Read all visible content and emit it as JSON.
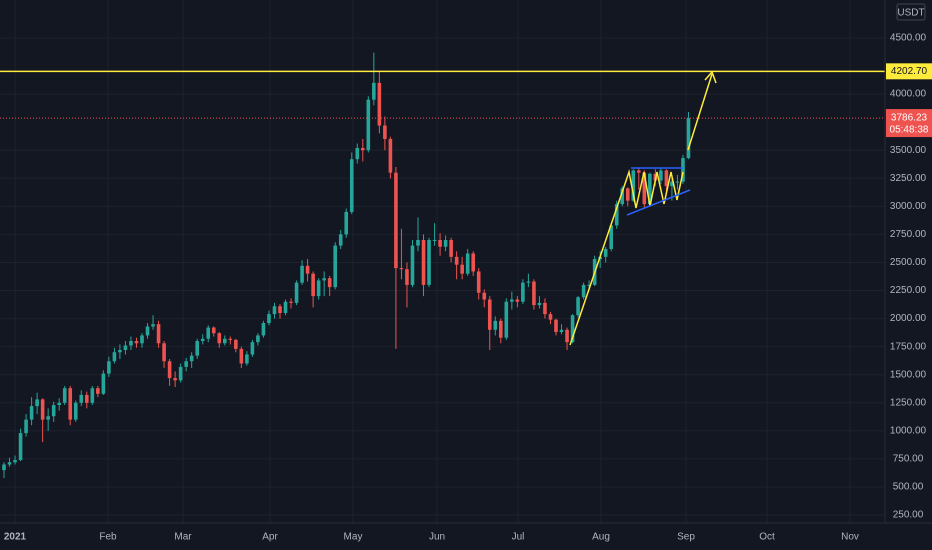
{
  "chart_data": {
    "type": "candlestick",
    "currency": "USDT",
    "up_color": "#26a69a",
    "down_color": "#ef5350",
    "grid": true,
    "ylim": [
      179,
      4838
    ],
    "yticks": [
      {
        "value": 250,
        "label": "250.00"
      },
      {
        "value": 500,
        "label": "500.00"
      },
      {
        "value": 750,
        "label": "750.00"
      },
      {
        "value": 1000,
        "label": "1000.00"
      },
      {
        "value": 1250,
        "label": "1250.00"
      },
      {
        "value": 1500,
        "label": "1500.00"
      },
      {
        "value": 1750,
        "label": "1750.00"
      },
      {
        "value": 2000,
        "label": "2000.00"
      },
      {
        "value": 2250,
        "label": "2250.00"
      },
      {
        "value": 2500,
        "label": "2500.00"
      },
      {
        "value": 2750,
        "label": "2750.00"
      },
      {
        "value": 3000,
        "label": "3000.00"
      },
      {
        "value": 3250,
        "label": "3250.00"
      },
      {
        "value": 3500,
        "label": "3500.00"
      },
      {
        "value": 4000,
        "label": "4000.00"
      },
      {
        "value": 4500,
        "label": "4500.00"
      }
    ],
    "x_labels": [
      "2021",
      "Feb",
      "Mar",
      "Apr",
      "May",
      "Jun",
      "Jul",
      "Aug",
      "Sep",
      "Oct",
      "Nov"
    ],
    "level": {
      "value": 4202.7,
      "label": "4202.70",
      "color": "#ffeb3b"
    },
    "countdown": "05:48:38",
    "ohlc": [
      [
        650,
        720,
        580,
        700
      ],
      [
        700,
        760,
        680,
        720
      ],
      [
        720,
        780,
        700,
        740
      ],
      [
        740,
        1020,
        730,
        980
      ],
      [
        980,
        1150,
        950,
        1100
      ],
      [
        1100,
        1300,
        1050,
        1220
      ],
      [
        1220,
        1340,
        1150,
        1280
      ],
      [
        1280,
        1290,
        900,
        1100
      ],
      [
        1100,
        1200,
        1000,
        1130
      ],
      [
        1130,
        1260,
        1080,
        1230
      ],
      [
        1230,
        1290,
        1180,
        1250
      ],
      [
        1250,
        1400,
        1230,
        1380
      ],
      [
        1380,
        1400,
        1050,
        1100
      ],
      [
        1100,
        1270,
        1080,
        1250
      ],
      [
        1250,
        1360,
        1220,
        1320
      ],
      [
        1320,
        1350,
        1200,
        1250
      ],
      [
        1250,
        1400,
        1230,
        1380
      ],
      [
        1380,
        1400,
        1300,
        1330
      ],
      [
        1330,
        1540,
        1320,
        1510
      ],
      [
        1510,
        1660,
        1480,
        1620
      ],
      [
        1620,
        1740,
        1600,
        1700
      ],
      [
        1700,
        1770,
        1640,
        1720
      ],
      [
        1720,
        1800,
        1680,
        1760
      ],
      [
        1760,
        1840,
        1720,
        1800
      ],
      [
        1800,
        1830,
        1740,
        1780
      ],
      [
        1780,
        1870,
        1740,
        1850
      ],
      [
        1850,
        1960,
        1820,
        1930
      ],
      [
        1930,
        2030,
        1900,
        1950
      ],
      [
        1950,
        1980,
        1740,
        1780
      ],
      [
        1780,
        1800,
        1560,
        1620
      ],
      [
        1620,
        1640,
        1400,
        1470
      ],
      [
        1470,
        1530,
        1390,
        1450
      ],
      [
        1450,
        1600,
        1430,
        1570
      ],
      [
        1570,
        1650,
        1530,
        1620
      ],
      [
        1620,
        1700,
        1560,
        1670
      ],
      [
        1670,
        1820,
        1640,
        1800
      ],
      [
        1800,
        1860,
        1770,
        1820
      ],
      [
        1820,
        1940,
        1790,
        1920
      ],
      [
        1920,
        1930,
        1840,
        1870
      ],
      [
        1870,
        1880,
        1740,
        1780
      ],
      [
        1780,
        1850,
        1760,
        1820
      ],
      [
        1820,
        1840,
        1770,
        1810
      ],
      [
        1810,
        1820,
        1700,
        1730
      ],
      [
        1730,
        1750,
        1560,
        1600
      ],
      [
        1600,
        1710,
        1580,
        1680
      ],
      [
        1680,
        1810,
        1660,
        1790
      ],
      [
        1790,
        1870,
        1760,
        1850
      ],
      [
        1850,
        1980,
        1830,
        1960
      ],
      [
        1960,
        2070,
        1940,
        2040
      ],
      [
        2040,
        2140,
        2000,
        2110
      ],
      [
        2110,
        2130,
        2000,
        2050
      ],
      [
        2050,
        2170,
        2030,
        2150
      ],
      [
        2150,
        2180,
        2090,
        2140
      ],
      [
        2140,
        2340,
        2120,
        2320
      ],
      [
        2320,
        2520,
        2300,
        2470
      ],
      [
        2470,
        2530,
        2330,
        2400
      ],
      [
        2400,
        2420,
        2100,
        2200
      ],
      [
        2200,
        2360,
        2170,
        2340
      ],
      [
        2340,
        2420,
        2200,
        2360
      ],
      [
        2360,
        2380,
        2200,
        2280
      ],
      [
        2280,
        2680,
        2260,
        2650
      ],
      [
        2650,
        2790,
        2620,
        2750
      ],
      [
        2750,
        2980,
        2720,
        2950
      ],
      [
        2950,
        3480,
        2930,
        3420
      ],
      [
        3420,
        3560,
        3380,
        3520
      ],
      [
        3520,
        3600,
        3400,
        3500
      ],
      [
        3500,
        3980,
        3480,
        3950
      ],
      [
        3950,
        4370,
        3900,
        4100
      ],
      [
        4100,
        4200,
        3650,
        3720
      ],
      [
        3720,
        3800,
        3500,
        3600
      ],
      [
        3600,
        3620,
        3250,
        3300
      ],
      [
        3300,
        3350,
        1730,
        2450
      ],
      [
        2450,
        2800,
        2350,
        2440
      ],
      [
        2440,
        2500,
        2100,
        2300
      ],
      [
        2300,
        2700,
        2280,
        2650
      ],
      [
        2650,
        2900,
        2600,
        2700
      ],
      [
        2700,
        2750,
        2200,
        2300
      ],
      [
        2300,
        2720,
        2280,
        2700
      ],
      [
        2700,
        2850,
        2650,
        2700
      ],
      [
        2700,
        2760,
        2560,
        2640
      ],
      [
        2640,
        2740,
        2600,
        2700
      ],
      [
        2700,
        2720,
        2500,
        2550
      ],
      [
        2550,
        2600,
        2350,
        2480
      ],
      [
        2480,
        2550,
        2350,
        2400
      ],
      [
        2400,
        2620,
        2380,
        2580
      ],
      [
        2580,
        2600,
        2380,
        2420
      ],
      [
        2420,
        2450,
        2170,
        2230
      ],
      [
        2230,
        2260,
        2100,
        2170
      ],
      [
        2170,
        2200,
        1720,
        1900
      ],
      [
        1900,
        2020,
        1850,
        1980
      ],
      [
        1980,
        2000,
        1780,
        1830
      ],
      [
        1830,
        2180,
        1810,
        2150
      ],
      [
        2150,
        2240,
        2080,
        2170
      ],
      [
        2170,
        2200,
        2100,
        2150
      ],
      [
        2150,
        2350,
        2130,
        2320
      ],
      [
        2320,
        2400,
        2280,
        2330
      ],
      [
        2330,
        2350,
        2080,
        2120
      ],
      [
        2120,
        2200,
        2090,
        2140
      ],
      [
        2140,
        2180,
        2000,
        2040
      ],
      [
        2040,
        2060,
        1950,
        1990
      ],
      [
        1990,
        2000,
        1850,
        1880
      ],
      [
        1880,
        1950,
        1860,
        1900
      ],
      [
        1900,
        1920,
        1720,
        1790
      ],
      [
        1790,
        2040,
        1780,
        2030
      ],
      [
        2030,
        2200,
        2010,
        2190
      ],
      [
        2190,
        2320,
        2170,
        2300
      ],
      [
        2300,
        2340,
        2250,
        2300
      ],
      [
        2300,
        2560,
        2290,
        2530
      ],
      [
        2530,
        2600,
        2450,
        2550
      ],
      [
        2550,
        2640,
        2500,
        2620
      ],
      [
        2620,
        2850,
        2600,
        2830
      ],
      [
        2830,
        3050,
        2800,
        3020
      ],
      [
        3020,
        3180,
        3000,
        3160
      ],
      [
        3160,
        3170,
        3000,
        3050
      ],
      [
        3050,
        3330,
        3040,
        3320
      ],
      [
        3320,
        3340,
        3150,
        3300
      ],
      [
        3300,
        3320,
        2980,
        3020
      ],
      [
        3020,
        3300,
        3000,
        3290
      ],
      [
        3290,
        3330,
        3180,
        3230
      ],
      [
        3230,
        3340,
        3200,
        3320
      ],
      [
        3320,
        3330,
        3120,
        3180
      ],
      [
        3180,
        3250,
        3050,
        3220
      ],
      [
        3220,
        3280,
        3150,
        3220
      ],
      [
        3220,
        3460,
        3200,
        3430
      ],
      [
        3430,
        3840,
        3420,
        3786.23
      ]
    ]
  }
}
